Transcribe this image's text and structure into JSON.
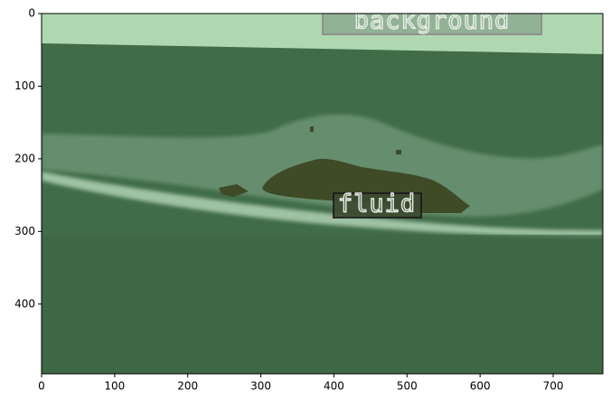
{
  "chart_data": {
    "type": "image",
    "xlim": [
      0,
      768
    ],
    "ylim": [
      496,
      0
    ],
    "xticks": [
      0,
      100,
      200,
      300,
      400,
      500,
      600,
      700
    ],
    "yticks": [
      0,
      100,
      200,
      300,
      400
    ],
    "annotations": [
      "background",
      "fluid"
    ]
  }
}
